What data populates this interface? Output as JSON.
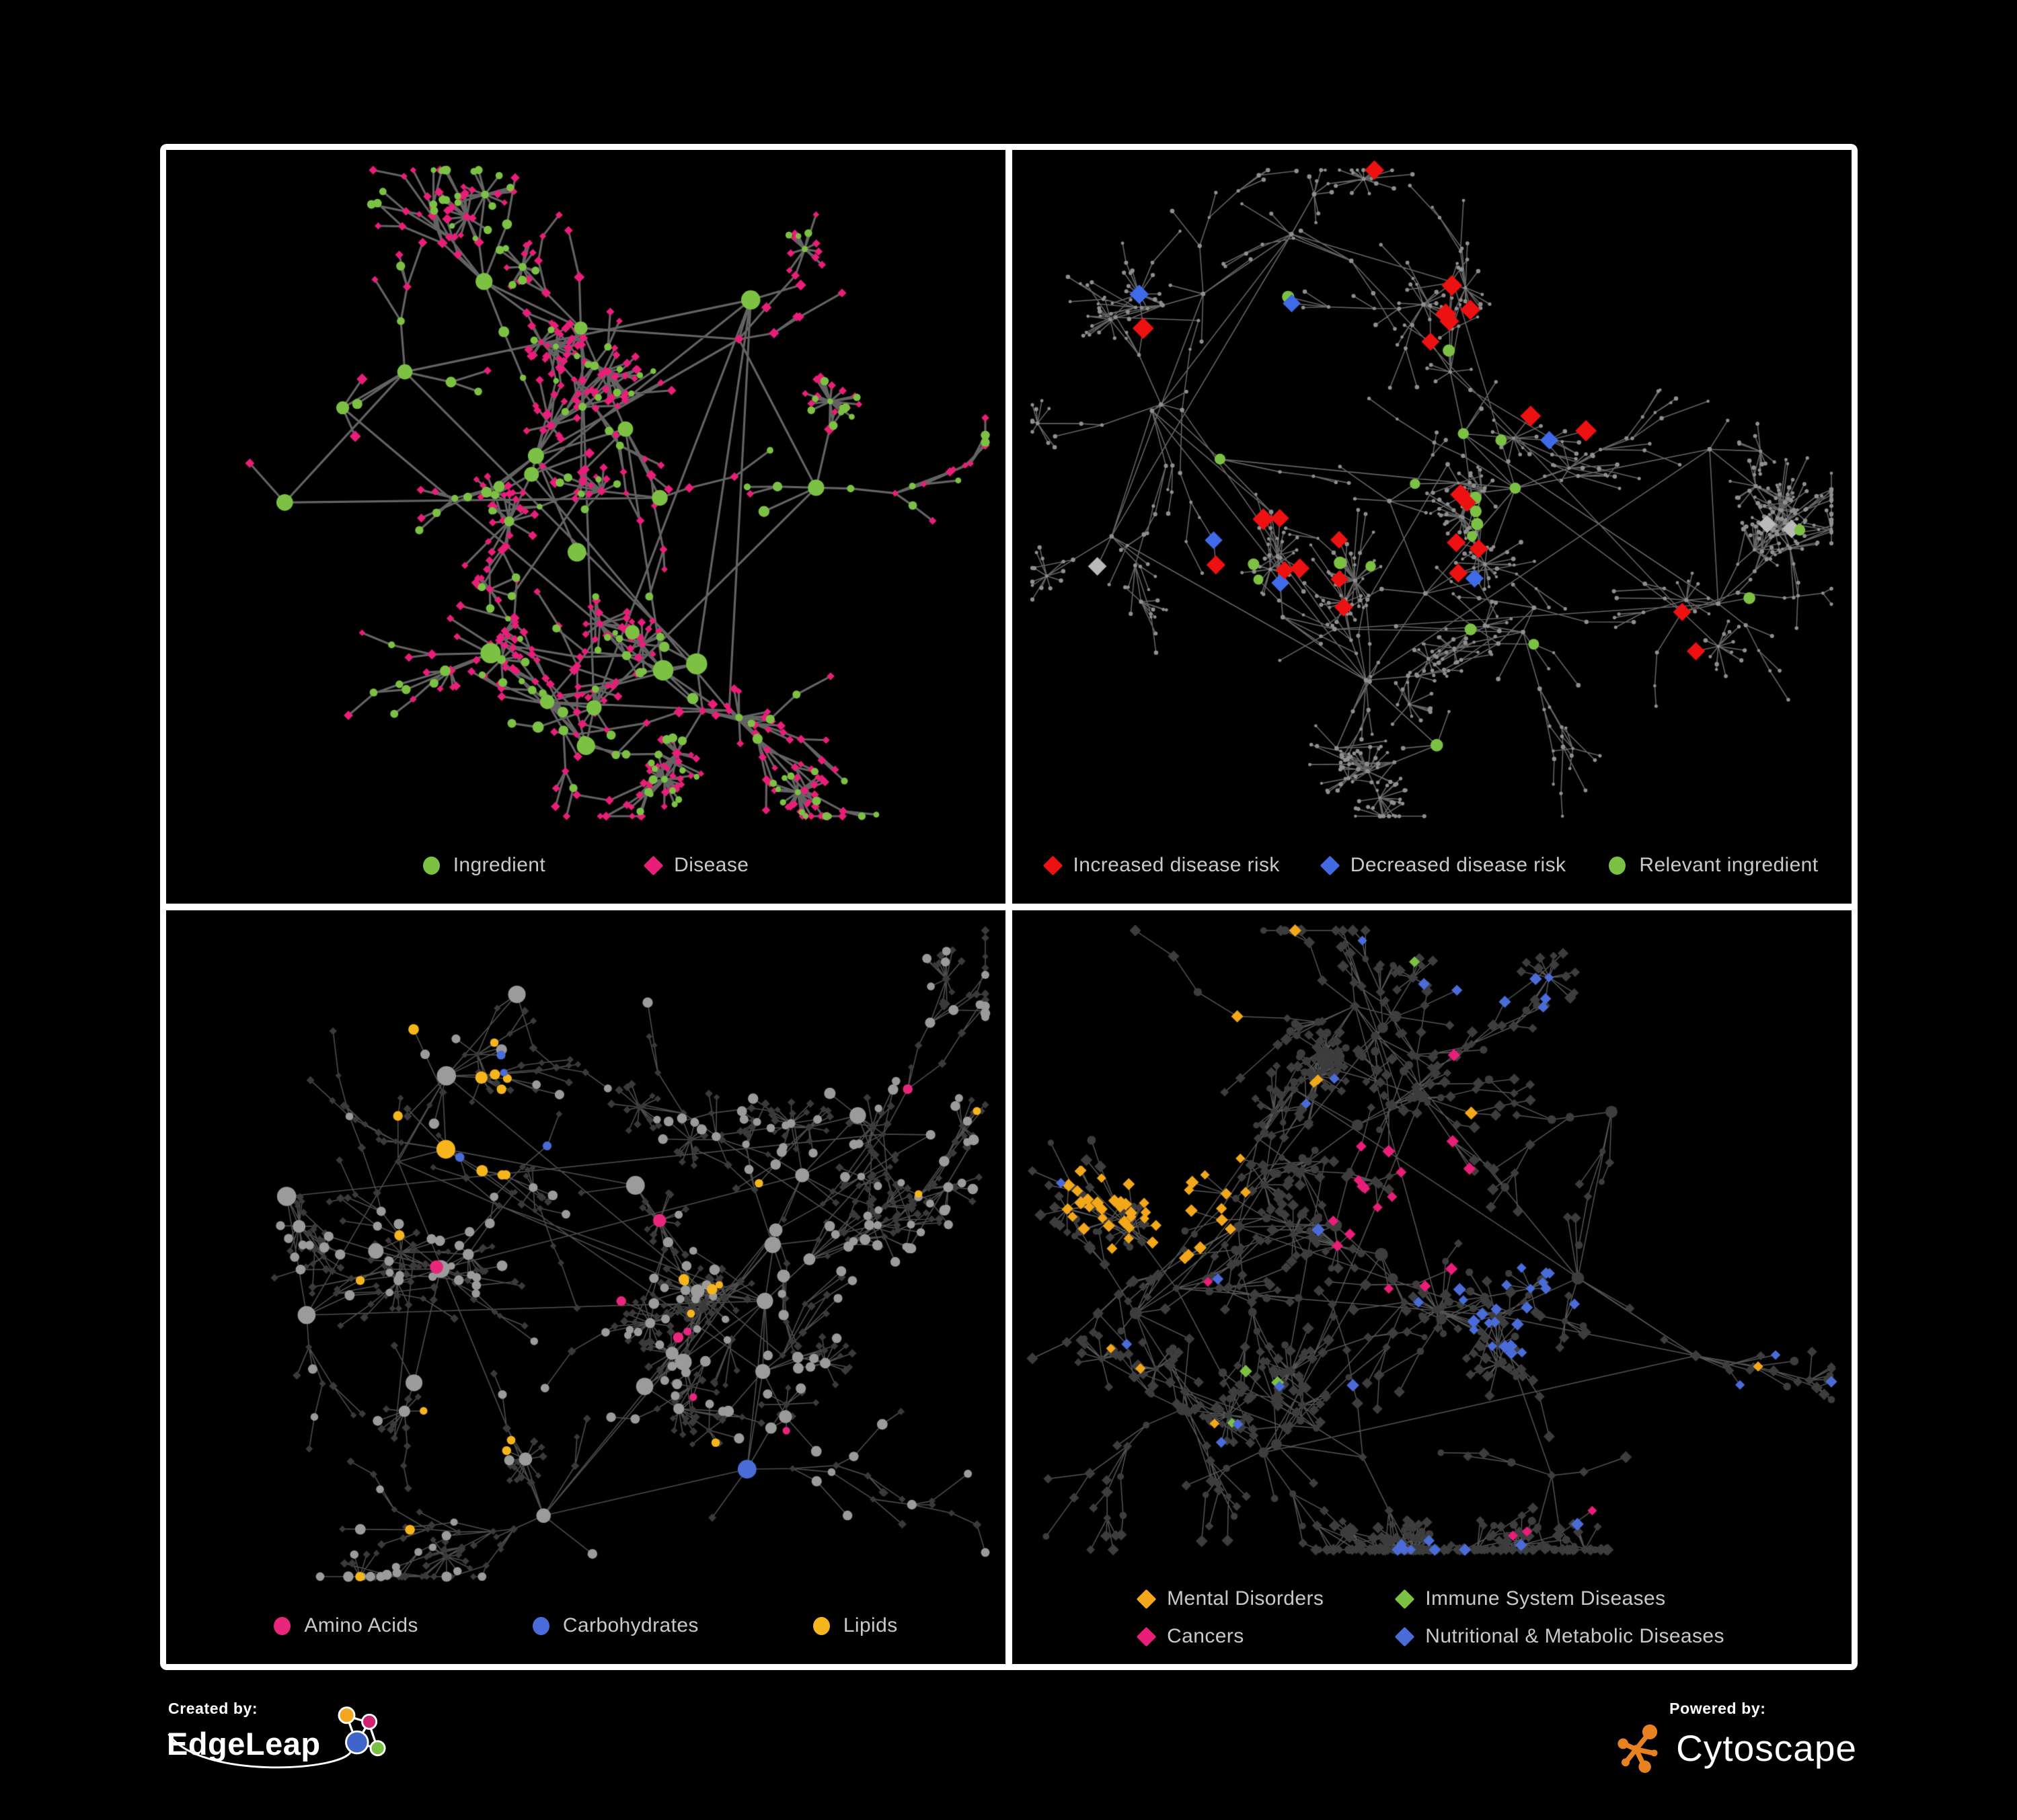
{
  "page": {
    "background": "#000000",
    "frame_color": "#ffffff",
    "legend_text_color": "#c9c9c9"
  },
  "panels": [
    {
      "name": "ingredient-disease",
      "legend": {
        "items": [
          {
            "label": "Ingredient",
            "shape": "circle",
            "color": "#7cc143"
          },
          {
            "label": "Disease",
            "shape": "diamond",
            "color": "#e81e78"
          }
        ]
      },
      "network_spec": {
        "seed": 42,
        "style": "two-class",
        "nodes": 640,
        "hubs": 22,
        "fan_p": 0.08,
        "edge": {
          "color": "#6e6e6e",
          "width": 3.2,
          "opacity": 0.9
        },
        "colors": {
          "circle": "#7cc143",
          "diamond": "#e81e78"
        }
      }
    },
    {
      "name": "disease-risk",
      "legend": {
        "items": [
          {
            "label": "Increased disease risk",
            "shape": "diamond",
            "color": "#ee1111"
          },
          {
            "label": "Decreased disease risk",
            "shape": "diamond",
            "color": "#4169e0"
          },
          {
            "label": "Relevant ingredient",
            "shape": "circle",
            "color": "#7cc143"
          }
        ]
      },
      "network_spec": {
        "seed": 7,
        "style": "risk",
        "nodes": 920,
        "hubs": 26,
        "fan_p": 0.12,
        "edge": {
          "color": "#7d7d7d",
          "width": 1.6,
          "opacity": 0.8
        },
        "colors": {
          "base": "#8f8f8f",
          "increased": "#ee1111",
          "decreased": "#3f6be8",
          "neutral": "#b9b9b9",
          "ingredient": "#7cc143"
        }
      }
    },
    {
      "name": "nutrient-classes",
      "legend": {
        "items": [
          {
            "label": "Amino Acids",
            "shape": "circle",
            "color": "#e8267c"
          },
          {
            "label": "Carbohydrates",
            "shape": "circle",
            "color": "#4a6cd8"
          },
          {
            "label": "Lipids",
            "shape": "circle",
            "color": "#f6b51d"
          }
        ]
      },
      "network_spec": {
        "seed": 19,
        "style": "nutrient",
        "nodes": 860,
        "hubs": 24,
        "fan_p": 0.09,
        "edge": {
          "color": "#9a9a9a",
          "width": 1.6,
          "opacity": 0.5
        },
        "colors": {
          "circle": "#9b9b9b",
          "diamond": "#3a3a3a",
          "amino": "#e8267c",
          "carbs": "#4a6cd8",
          "lipids": "#f6b51d"
        }
      }
    },
    {
      "name": "disease-classes",
      "legend": {
        "items": [
          {
            "label": "Mental Disorders",
            "shape": "diamond",
            "color": "#f3a71b"
          },
          {
            "label": "Immune System Diseases",
            "shape": "diamond",
            "color": "#7cc143"
          },
          {
            "label": "Cancers",
            "shape": "diamond",
            "color": "#e81e78"
          },
          {
            "label": "Nutritional & Metabolic Diseases",
            "shape": "diamond",
            "color": "#4a6cd8"
          }
        ]
      },
      "network_spec": {
        "seed": 55,
        "style": "disease-classes",
        "nodes": 1050,
        "hubs": 26,
        "fan_p": 0.1,
        "edge": {
          "color": "#9b9b9b",
          "width": 1.5,
          "opacity": 0.55
        },
        "colors": {
          "base": "#3d3d3d",
          "mental": "#f3a71b",
          "immune": "#7cc143",
          "cancers": "#e81e78",
          "metabolic": "#4a6cd8"
        }
      }
    }
  ],
  "footer": {
    "created_by_label": "Created by:",
    "created_by_name": "EdgeLeap",
    "powered_by_label": "Powered by:",
    "powered_by_name": "Cytoscape",
    "edgeleap_logo_colors": {
      "orange": "#f2a51d",
      "magenta": "#cf2371",
      "blue": "#4064c9",
      "green": "#79c143",
      "stroke": "#ffffff"
    },
    "cytoscape_logo_color": "#e8811f",
    "text_color": "#ffffff"
  }
}
